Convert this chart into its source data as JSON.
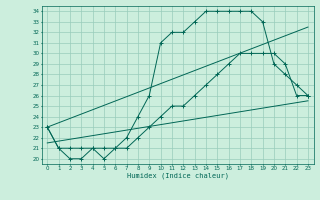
{
  "title": "",
  "xlabel": "Humidex (Indice chaleur)",
  "bg_color": "#cceedd",
  "line_color": "#006655",
  "grid_color": "#99ccbb",
  "xlim": [
    -0.5,
    23.5
  ],
  "ylim": [
    19.5,
    34.5
  ],
  "yticks": [
    20,
    21,
    22,
    23,
    24,
    25,
    26,
    27,
    28,
    29,
    30,
    31,
    32,
    33,
    34
  ],
  "xticks": [
    0,
    1,
    2,
    3,
    4,
    5,
    6,
    7,
    8,
    9,
    10,
    11,
    12,
    13,
    14,
    15,
    16,
    17,
    18,
    19,
    20,
    21,
    22,
    23
  ],
  "series": [
    {
      "x": [
        0,
        23
      ],
      "y": [
        21.5,
        25.5
      ],
      "marker": false
    },
    {
      "x": [
        0,
        23
      ],
      "y": [
        23,
        32.5
      ],
      "marker": false
    },
    {
      "x": [
        0,
        1,
        2,
        3,
        4,
        5,
        6,
        7,
        8,
        9,
        10,
        11,
        12,
        13,
        14,
        15,
        16,
        17,
        18,
        19,
        20,
        21,
        22,
        23
      ],
      "y": [
        23,
        21,
        21,
        21,
        21,
        21,
        21,
        21,
        22,
        23,
        24,
        25,
        25,
        26,
        27,
        28,
        29,
        30,
        30,
        30,
        30,
        29,
        26,
        26
      ],
      "marker": true
    },
    {
      "x": [
        0,
        1,
        2,
        3,
        4,
        5,
        6,
        7,
        8,
        9,
        10,
        11,
        12,
        13,
        14,
        15,
        16,
        17,
        18,
        19,
        20,
        21,
        22,
        23
      ],
      "y": [
        23,
        21,
        20,
        20,
        21,
        20,
        21,
        22,
        24,
        26,
        31,
        32,
        32,
        33,
        34,
        34,
        34,
        34,
        34,
        33,
        29,
        28,
        27,
        26
      ],
      "marker": true
    }
  ]
}
